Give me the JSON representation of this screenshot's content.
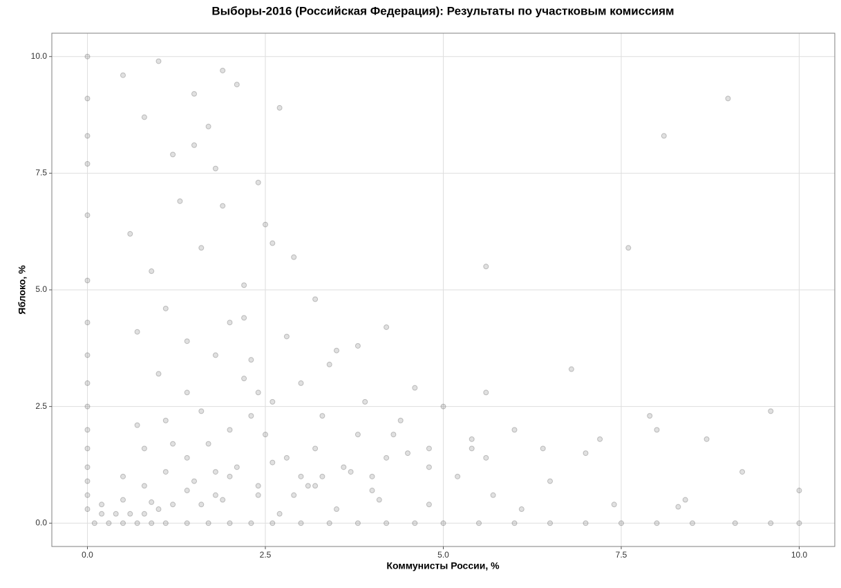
{
  "chart_data": {
    "type": "scatter",
    "title": "Выборы-2016 (Российская Федерация): Результаты по участковым комиссиям",
    "x_label": "Коммунисты России, %",
    "y_label": "Яблоко, %",
    "color": "#000000",
    "grid": true,
    "xlim": [
      -0.5,
      10.5
    ],
    "ylim": [
      -0.5,
      10.5
    ],
    "xticks": [
      {
        "value": 0,
        "label": "0.0"
      },
      2.5,
      {
        "value": 5,
        "label": "5.0"
      },
      7.5,
      {
        "value": 10,
        "label": "10.0"
      }
    ],
    "yticks": [
      {
        "value": 0,
        "label": "0.0"
      },
      2.5,
      {
        "value": 5,
        "label": "5.0"
      },
      7.5,
      {
        "value": 10,
        "label": "10.0"
      }
    ],
    "x": [
      0.1,
      0.3,
      0.5,
      0.7,
      0.9,
      1.1,
      1.4,
      1.7,
      2.0,
      2.3,
      2.6,
      3.0,
      3.4,
      3.8,
      4.2,
      4.6,
      5.0,
      5.5,
      6.0,
      6.5,
      7.0,
      7.5,
      8.0,
      8.5,
      9.1,
      9.6,
      10.0,
      0,
      0,
      0,
      0,
      0,
      0,
      0,
      0,
      0,
      0,
      0,
      0,
      0,
      0,
      0,
      0,
      0.2,
      0.5,
      0.8,
      1.1,
      1.4,
      1.7,
      2.0,
      2.3,
      2.6,
      3.0,
      3.4,
      3.8,
      4.2,
      0.2,
      0.5,
      0.8,
      1.1,
      1.4,
      1.8,
      2.2,
      0.4,
      0.9,
      1.4,
      2.0,
      2.6,
      3.2,
      3.8,
      4.4,
      5.0,
      5.6,
      0.6,
      1.2,
      1.8,
      2.4,
      3.0,
      3.6,
      4.2,
      4.8,
      5.4,
      6.0,
      0.8,
      1.6,
      2.4,
      3.2,
      4.0,
      4.8,
      5.6,
      6.4,
      7.2,
      8.0,
      0.5,
      0.8,
      1.0,
      1.2,
      1.5,
      1.7,
      1.9,
      2.1,
      2.4,
      2.7,
      0.6,
      0.9,
      1.3,
      1.6,
      1.8,
      2.2,
      2.5,
      2.9,
      3.2,
      0.7,
      1.1,
      1.4,
      2.0,
      2.3,
      2.8,
      3.5,
      1.0,
      1.5,
      1.9,
      2.6,
      0.7,
      1.2,
      1.6,
      2.1,
      2.5,
      2.9,
      3.3,
      3.7,
      4.1,
      4.5,
      1.0,
      1.5,
      1.9,
      2.4,
      2.8,
      3.1,
      3.5,
      3.9,
      4.3,
      4.8,
      5.2,
      5.7,
      6.1,
      3.3,
      2.2,
      2.7,
      1.8,
      4.0,
      4.6,
      5.4,
      6.5,
      7.0,
      7.4,
      7.9,
      8.3,
      8.7,
      9.2,
      9.6,
      10.0,
      6.8,
      8.1,
      9.0,
      8.4,
      7.6,
      5.6
    ],
    "values": [
      0,
      0,
      0,
      0,
      0,
      0,
      0,
      0,
      0,
      0,
      0,
      0,
      0,
      0,
      0,
      0,
      0,
      0,
      0,
      0,
      0,
      0,
      0,
      0,
      0,
      0,
      0,
      0.3,
      0.6,
      0.9,
      1.2,
      1.6,
      2.0,
      2.5,
      3.0,
      3.6,
      4.3,
      5.2,
      6.6,
      7.7,
      8.3,
      9.1,
      10.0,
      0.2,
      0.5,
      0.8,
      1.1,
      1.4,
      1.7,
      2.0,
      2.3,
      2.6,
      3.0,
      3.4,
      3.8,
      4.2,
      0.4,
      1.0,
      1.6,
      2.2,
      2.8,
      3.6,
      4.4,
      0.2,
      0.45,
      0.7,
      1.0,
      1.3,
      1.6,
      1.9,
      2.2,
      2.5,
      2.8,
      0.2,
      0.4,
      0.6,
      0.8,
      1.0,
      1.2,
      1.4,
      1.6,
      1.8,
      2.0,
      0.2,
      0.4,
      0.6,
      0.8,
      1.0,
      1.2,
      1.4,
      1.6,
      1.8,
      2.0,
      9.6,
      8.7,
      9.9,
      7.9,
      9.2,
      8.5,
      6.8,
      9.4,
      7.3,
      8.9,
      6.2,
      5.4,
      6.9,
      5.9,
      7.6,
      5.1,
      6.4,
      5.7,
      4.8,
      4.1,
      4.6,
      3.9,
      4.3,
      3.5,
      4.0,
      3.7,
      3.2,
      8.1,
      9.7,
      6.0,
      2.1,
      1.7,
      2.4,
      1.2,
      1.9,
      0.6,
      2.3,
      1.1,
      0.5,
      1.5,
      0.3,
      0.9,
      0.5,
      2.8,
      1.4,
      0.8,
      0.3,
      2.6,
      1.9,
      0.4,
      1.0,
      0.6,
      0.3,
      1.0,
      3.1,
      0.2,
      1.1,
      0.7,
      2.9,
      1.6,
      0.9,
      1.5,
      0.4,
      2.3,
      0.35,
      1.8,
      1.1,
      2.4,
      0.7,
      3.3,
      8.3,
      9.1,
      0.5,
      5.9,
      5.5
    ]
  }
}
